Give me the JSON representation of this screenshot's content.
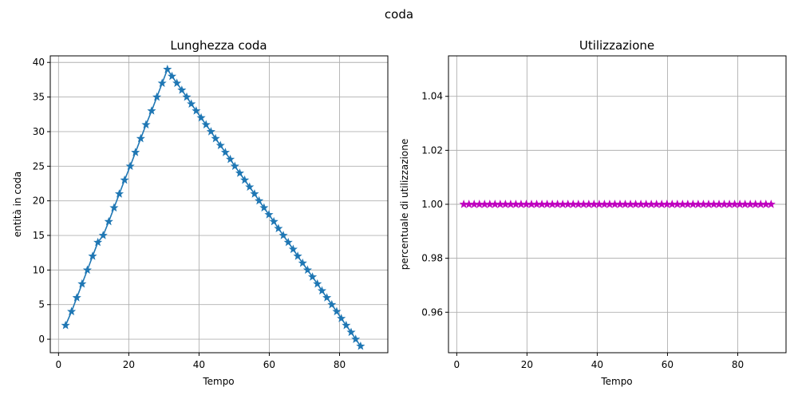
{
  "figure": {
    "suptitle": "coda"
  },
  "chart_data": [
    {
      "type": "line",
      "title": "Lunghezza coda",
      "xlabel": "Tempo",
      "ylabel": "entità in coda",
      "xlim": [
        -2.35,
        93.75
      ],
      "ylim": [
        -1.95,
        40.95
      ],
      "xticks": [
        0,
        20,
        40,
        60,
        80
      ],
      "yticks": [
        0,
        5,
        10,
        15,
        20,
        25,
        30,
        35,
        40
      ],
      "grid": true,
      "marker": "star",
      "series": [
        {
          "color": "#1f77b4",
          "points": [
            [
              2.0,
              2
            ],
            [
              3.7,
              4
            ],
            [
              5.2,
              6
            ],
            [
              6.7,
              8
            ],
            [
              8.2,
              10
            ],
            [
              9.7,
              12
            ],
            [
              11.2,
              14
            ],
            [
              12.7,
              15
            ],
            [
              14.3,
              17
            ],
            [
              15.8,
              19
            ],
            [
              17.3,
              21
            ],
            [
              18.8,
              23
            ],
            [
              20.4,
              25
            ],
            [
              21.9,
              27
            ],
            [
              23.4,
              29
            ],
            [
              24.9,
              31
            ],
            [
              26.5,
              33
            ],
            [
              28.0,
              35
            ],
            [
              29.5,
              37
            ],
            [
              31.0,
              39
            ],
            [
              32.3,
              38
            ],
            [
              33.7,
              37
            ],
            [
              35.1,
              36
            ],
            [
              36.5,
              35
            ],
            [
              37.8,
              34
            ],
            [
              39.2,
              33
            ],
            [
              40.6,
              32
            ],
            [
              42.0,
              31
            ],
            [
              43.4,
              30
            ],
            [
              44.7,
              29
            ],
            [
              46.1,
              28
            ],
            [
              47.5,
              27
            ],
            [
              48.9,
              26
            ],
            [
              50.2,
              25
            ],
            [
              51.6,
              24
            ],
            [
              53.0,
              23
            ],
            [
              54.4,
              22
            ],
            [
              55.8,
              21
            ],
            [
              57.1,
              20
            ],
            [
              58.5,
              19
            ],
            [
              59.9,
              18
            ],
            [
              61.3,
              17
            ],
            [
              62.6,
              16
            ],
            [
              64.0,
              15
            ],
            [
              65.4,
              14
            ],
            [
              66.8,
              13
            ],
            [
              68.1,
              12
            ],
            [
              69.5,
              11
            ],
            [
              70.9,
              10
            ],
            [
              72.3,
              9
            ],
            [
              73.7,
              8
            ],
            [
              75.0,
              7
            ],
            [
              76.4,
              6
            ],
            [
              77.8,
              5
            ],
            [
              79.2,
              4
            ],
            [
              80.5,
              3
            ],
            [
              81.9,
              2
            ],
            [
              83.3,
              1
            ],
            [
              84.6,
              0
            ],
            [
              86.0,
              -1
            ]
          ]
        }
      ]
    },
    {
      "type": "line",
      "title": "Utilizzazione",
      "xlabel": "Tempo",
      "ylabel": "percentuale di utilizzazione",
      "xlim": [
        -2.35,
        93.75
      ],
      "ylim": [
        0.945,
        1.055
      ],
      "xticks": [
        0,
        20,
        40,
        60,
        80
      ],
      "yticks": [
        0.96,
        0.98,
        1.0,
        1.02,
        1.04
      ],
      "grid": true,
      "marker": "star",
      "series": [
        {
          "color": "#bf00bf",
          "x_start": 2.0,
          "x_end": 89.5,
          "count": 60,
          "y": 1.0
        }
      ]
    }
  ]
}
